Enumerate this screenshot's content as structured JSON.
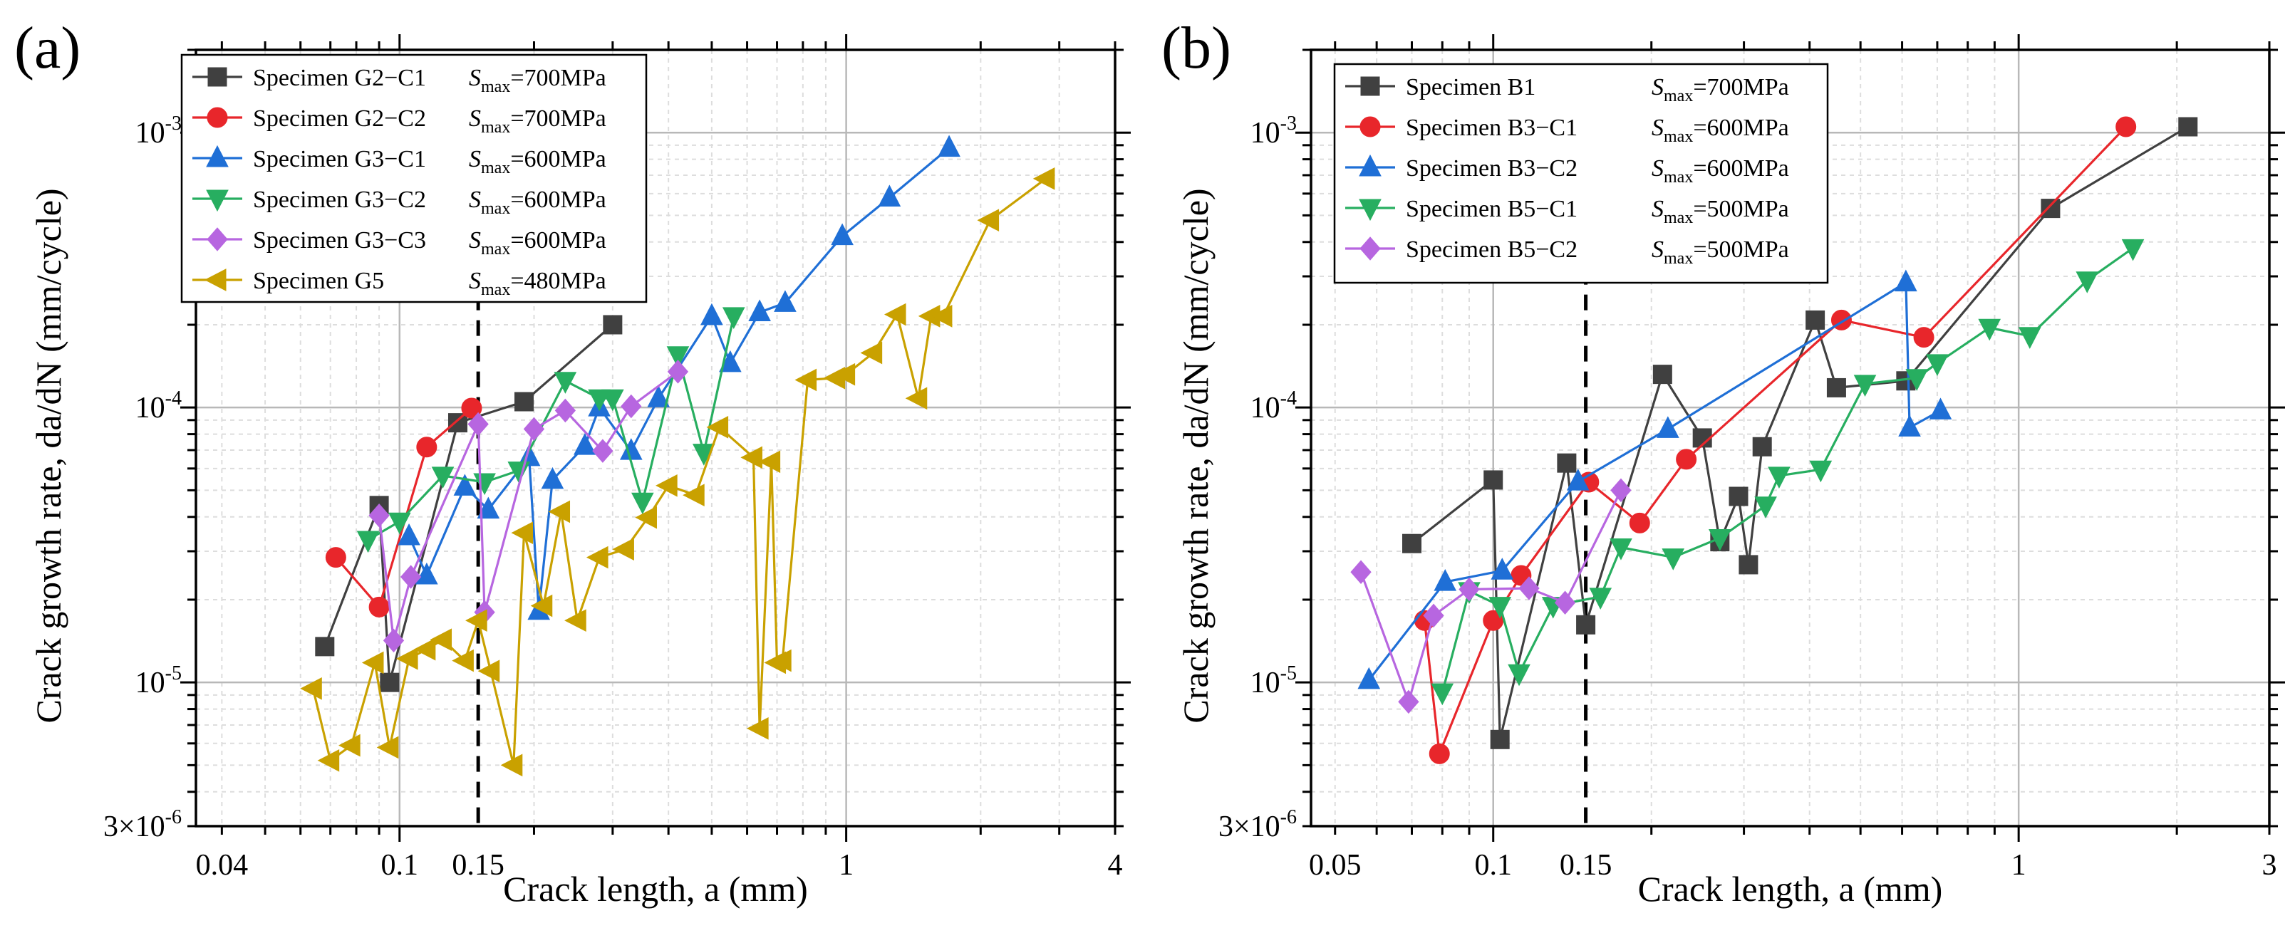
{
  "chart_data": [
    {
      "type": "scatter",
      "panel_label": "(a)",
      "xlabel": "Crack length, a (mm)",
      "ylabel": "Crack growth rate, da/dN (mm/cycle)",
      "x_scale": "log",
      "y_scale": "log",
      "xlim": [
        0.035,
        4
      ],
      "ylim": [
        3e-06,
        0.002
      ],
      "x_ticks": [
        {
          "value": 0.04,
          "label": "0.04"
        },
        {
          "value": 0.1,
          "label": "0.1"
        },
        {
          "value": 0.15,
          "label": "0.15"
        },
        {
          "value": 1,
          "label": "1"
        },
        {
          "value": 4,
          "label": "4"
        }
      ],
      "y_ticks": [
        {
          "value": 3e-06,
          "base": "3×10",
          "exp": "-6"
        },
        {
          "value": 1e-05,
          "base": "10",
          "exp": "-5"
        },
        {
          "value": 0.0001,
          "base": "10",
          "exp": "-4"
        },
        {
          "value": 0.001,
          "base": "10",
          "exp": "-3"
        }
      ],
      "vline": 0.15,
      "series": [
        {
          "name": "Specimen G2−C1",
          "smax_label": "S",
          "smax_sub": "max",
          "smax_value": "=700MPa",
          "color": "#404040",
          "marker": "square",
          "x": [
            0.068,
            0.09,
            0.095,
            0.135,
            0.19,
            0.3
          ],
          "y": [
            1.35e-05,
            4.4e-05,
            1e-05,
            8.8e-05,
            0.000105,
            0.0002
          ]
        },
        {
          "name": "Specimen G2−C2",
          "smax_label": "S",
          "smax_sub": "max",
          "smax_value": "=700MPa",
          "color": "#e8262b",
          "marker": "circle",
          "x": [
            0.072,
            0.09,
            0.115,
            0.145
          ],
          "y": [
            2.85e-05,
            1.88e-05,
            7.18e-05,
            9.95e-05
          ]
        },
        {
          "name": "Specimen G3−C1",
          "smax_label": "S",
          "smax_sub": "max",
          "smax_value": "=600MPa",
          "color": "#1f6fd6",
          "marker": "triangle-up",
          "x": [
            0.105,
            0.115,
            0.14,
            0.158,
            0.195,
            0.205,
            0.22,
            0.26,
            0.28,
            0.33,
            0.38,
            0.5,
            0.55,
            0.64,
            0.73,
            0.98,
            1.25,
            1.7
          ],
          "y": [
            3.4e-05,
            2.45e-05,
            5.15e-05,
            4.25e-05,
            6.6e-05,
            1.82e-05,
            5.45e-05,
            7.25e-05,
            0.0001,
            6.95e-05,
            0.000108,
            0.000215,
            0.000145,
            0.000222,
            0.00024,
            0.00042,
            0.00058,
            0.00088
          ]
        },
        {
          "name": "Specimen G3−C2",
          "smax_label": "S",
          "smax_sub": "max",
          "smax_value": "=600MPa",
          "color": "#27ae60",
          "marker": "triangle-down",
          "x": [
            0.085,
            0.1,
            0.125,
            0.155,
            0.185,
            0.235,
            0.28,
            0.3,
            0.35,
            0.42,
            0.48,
            0.56
          ],
          "y": [
            3.3e-05,
            3.85e-05,
            5.65e-05,
            5.35e-05,
            5.9e-05,
            0.000125,
            0.000108,
            0.000108,
            4.55e-05,
            0.000155,
            6.85e-05,
            0.000215
          ]
        },
        {
          "name": "Specimen G3−C3",
          "smax_label": "S",
          "smax_sub": "max",
          "smax_value": "=600MPa",
          "color": "#b766e0",
          "marker": "diamond",
          "x": [
            0.09,
            0.097,
            0.106,
            0.15,
            0.155,
            0.2,
            0.235,
            0.285,
            0.33,
            0.42
          ],
          "y": [
            4.05e-05,
            1.42e-05,
            2.42e-05,
            8.7e-05,
            1.8e-05,
            8.35e-05,
            9.75e-05,
            6.95e-05,
            0.000101,
            0.000135
          ]
        },
        {
          "name": "Specimen G5",
          "smax_label": "S",
          "smax_sub": "max",
          "smax_value": "=480MPa",
          "color": "#c9a100",
          "marker": "triangle-left",
          "x": [
            0.064,
            0.07,
            0.078,
            0.088,
            0.095,
            0.105,
            0.115,
            0.125,
            0.14,
            0.15,
            0.16,
            0.18,
            0.19,
            0.21,
            0.23,
            0.25,
            0.28,
            0.32,
            0.36,
            0.4,
            0.46,
            0.52,
            0.62,
            0.64,
            0.68,
            0.7,
            0.72,
            0.82,
            0.95,
            1.0,
            1.15,
            1.3,
            1.45,
            1.55,
            1.65,
            2.1,
            2.8
          ],
          "y": [
            9.5e-06,
            5.2e-06,
            5.9e-06,
            1.18e-05,
            5.8e-06,
            1.22e-05,
            1.32e-05,
            1.43e-05,
            1.2e-05,
            1.68e-05,
            1.1e-05,
            5e-06,
            3.5e-05,
            1.9e-05,
            4.18e-05,
            1.68e-05,
            2.85e-05,
            3.05e-05,
            3.98e-05,
            5.2e-05,
            4.8e-05,
            8.48e-05,
            6.58e-05,
            6.8e-06,
            6.35e-05,
            1.18e-05,
            1.2e-05,
            0.000126,
            0.000128,
            0.000132,
            0.000158,
            0.000218,
            0.000108,
            0.000215,
            0.000215,
            0.00048,
            0.00068
          ]
        }
      ]
    },
    {
      "type": "scatter",
      "panel_label": "(b)",
      "xlabel": "Crack length, a (mm)",
      "ylabel": "Crack growth rate, da/dN (mm/cycle)",
      "x_scale": "log",
      "y_scale": "log",
      "xlim": [
        0.045,
        3
      ],
      "ylim": [
        3e-06,
        0.002
      ],
      "x_ticks": [
        {
          "value": 0.05,
          "label": "0.05"
        },
        {
          "value": 0.1,
          "label": "0.1"
        },
        {
          "value": 0.15,
          "label": "0.15"
        },
        {
          "value": 1,
          "label": "1"
        },
        {
          "value": 3,
          "label": "3"
        }
      ],
      "y_ticks": [
        {
          "value": 3e-06,
          "base": "3×10",
          "exp": "-6"
        },
        {
          "value": 1e-05,
          "base": "10",
          "exp": "-5"
        },
        {
          "value": 0.0001,
          "base": "10",
          "exp": "-4"
        },
        {
          "value": 0.001,
          "base": "10",
          "exp": "-3"
        }
      ],
      "vline": 0.15,
      "series": [
        {
          "name": "Specimen B1",
          "smax_label": "S",
          "smax_sub": "max",
          "smax_value": "=700MPa",
          "color": "#404040",
          "marker": "square",
          "x": [
            0.07,
            0.1,
            0.103,
            0.138,
            0.15,
            0.21,
            0.25,
            0.27,
            0.293,
            0.306,
            0.325,
            0.41,
            0.45,
            0.61,
            1.15,
            2.1
          ],
          "y": [
            3.2e-05,
            5.45e-05,
            6.2e-06,
            6.28e-05,
            1.62e-05,
            0.000132,
            7.75e-05,
            3.25e-05,
            4.75e-05,
            2.68e-05,
            7.2e-05,
            0.000208,
            0.000118,
            0.000125,
            0.00053,
            0.00105
          ]
        },
        {
          "name": "Specimen B3−C1",
          "smax_label": "S",
          "smax_sub": "max",
          "smax_value": "=600MPa",
          "color": "#e8262b",
          "marker": "circle",
          "x": [
            0.074,
            0.079,
            0.1,
            0.113,
            0.152,
            0.19,
            0.233,
            0.46,
            0.66,
            1.6
          ],
          "y": [
            1.68e-05,
            5.5e-06,
            1.68e-05,
            2.45e-05,
            5.35e-05,
            3.8e-05,
            6.48e-05,
            0.000208,
            0.00018,
            0.00105
          ]
        },
        {
          "name": "Specimen B3−C2",
          "smax_label": "S",
          "smax_sub": "max",
          "smax_value": "=600MPa",
          "color": "#1f6fd6",
          "marker": "triangle-up",
          "x": [
            0.058,
            0.081,
            0.104,
            0.145,
            0.215,
            0.61,
            0.62,
            0.71
          ],
          "y": [
            1.02e-05,
            2.32e-05,
            2.55e-05,
            5.38e-05,
            8.35e-05,
            0.000285,
            8.45e-05,
            9.75e-05
          ]
        },
        {
          "name": "Specimen B5−C1",
          "smax_label": "S",
          "smax_sub": "max",
          "smax_value": "=500MPa",
          "color": "#27ae60",
          "marker": "triangle-down",
          "x": [
            0.08,
            0.09,
            0.103,
            0.112,
            0.13,
            0.16,
            0.175,
            0.22,
            0.27,
            0.33,
            0.35,
            0.42,
            0.51,
            0.64,
            0.7,
            0.88,
            1.05,
            1.35,
            1.65
          ],
          "y": [
            9.2e-06,
            2.15e-05,
            1.9e-05,
            1.08e-05,
            1.9e-05,
            2.05e-05,
            3.1e-05,
            2.85e-05,
            3.35e-05,
            4.4e-05,
            5.65e-05,
            5.95e-05,
            0.000122,
            0.000128,
            0.000145,
            0.000195,
            0.000182,
            0.00029,
            0.00038
          ]
        },
        {
          "name": "Specimen B5−C2",
          "smax_label": "S",
          "smax_sub": "max",
          "smax_value": "=500MPa",
          "color": "#b766e0",
          "marker": "diamond",
          "x": [
            0.056,
            0.069,
            0.077,
            0.09,
            0.117,
            0.137,
            0.175
          ],
          "y": [
            2.52e-05,
            8.5e-06,
            1.75e-05,
            2.18e-05,
            2.2e-05,
            1.95e-05,
            5e-05
          ]
        }
      ]
    }
  ]
}
